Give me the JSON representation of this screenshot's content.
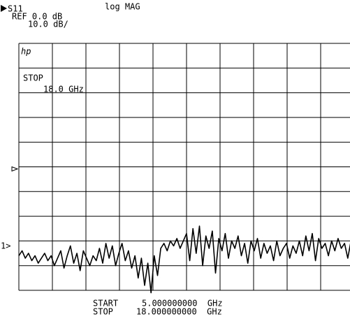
{
  "chart_data": {
    "type": "line",
    "channel": "S11",
    "format": "log MAG",
    "reference": "REF 0.0 dB",
    "scale": "10.0 dB/",
    "logo": "hp",
    "stop_label": "STOP",
    "stop_value": "18.0 GHz",
    "start_caption": "START",
    "start_freq": "5.000000000  GHz",
    "stop_caption": "STOP",
    "stop_freq": "18.000000000  GHz",
    "marker_label": "1>",
    "xlim": [
      5,
      18
    ],
    "ylim": [
      -50,
      50
    ],
    "xticks": [
      5,
      6.3,
      7.6,
      8.9,
      10.2,
      11.5,
      12.8,
      14.1,
      15.4,
      16.7,
      18
    ],
    "yticks": [
      -50,
      -40,
      -30,
      -20,
      -10,
      0,
      10,
      20,
      30,
      40,
      50
    ],
    "grid": true,
    "series": [
      {
        "color": "#000000",
        "x": [
          5,
          5.125,
          5.25,
          5.375,
          5.5,
          5.625,
          5.75,
          5.875,
          6,
          6.125,
          6.25,
          6.375,
          6.5,
          6.625,
          6.75,
          6.875,
          7,
          7.125,
          7.25,
          7.375,
          7.5,
          7.625,
          7.75,
          7.875,
          8,
          8.125,
          8.25,
          8.375,
          8.5,
          8.625,
          8.75,
          8.875,
          9,
          9.125,
          9.25,
          9.375,
          9.5,
          9.625,
          9.75,
          9.875,
          10,
          10.125,
          10.25,
          10.375,
          10.5,
          10.625,
          10.75,
          10.875,
          11,
          11.125,
          11.25,
          11.375,
          11.5,
          11.625,
          11.75,
          11.875,
          12,
          12.125,
          12.25,
          12.375,
          12.5,
          12.625,
          12.75,
          12.875,
          13,
          13.125,
          13.25,
          13.375,
          13.5,
          13.625,
          13.75,
          13.875,
          14,
          14.125,
          14.25,
          14.375,
          14.5,
          14.625,
          14.75,
          14.875,
          15,
          15.125,
          15.25,
          15.375,
          15.5,
          15.625,
          15.75,
          15.875,
          16,
          16.125,
          16.25,
          16.375,
          16.5,
          16.625,
          16.75,
          16.875,
          17,
          17.125,
          17.25,
          17.375,
          17.5,
          17.625,
          17.75,
          17.875,
          18
        ],
        "values": [
          -36,
          -34,
          -37,
          -35,
          -38,
          -36,
          -39,
          -37,
          -35,
          -38,
          -36,
          -40,
          -37,
          -34,
          -41,
          -36,
          -32,
          -39,
          -35,
          -42,
          -34,
          -37,
          -40,
          -36,
          -38,
          -33,
          -39,
          -31,
          -37,
          -32,
          -40,
          -35,
          -31,
          -38,
          -34,
          -41,
          -36,
          -45,
          -37,
          -48,
          -39,
          -51,
          -36,
          -44,
          -33,
          -31,
          -34,
          -30,
          -32,
          -29,
          -33,
          -30,
          -27,
          -38,
          -25,
          -35,
          -24,
          -40,
          -28,
          -33,
          -26,
          -43,
          -29,
          -34,
          -27,
          -37,
          -30,
          -33,
          -28,
          -36,
          -31,
          -39,
          -30,
          -34,
          -29,
          -37,
          -31,
          -35,
          -32,
          -38,
          -30,
          -36,
          -33,
          -31,
          -37,
          -32,
          -35,
          -30,
          -36,
          -28,
          -34,
          -27,
          -38,
          -29,
          -33,
          -31,
          -36,
          -30,
          -34,
          -29,
          -33,
          -31,
          -37,
          -30,
          -32
        ]
      }
    ]
  }
}
